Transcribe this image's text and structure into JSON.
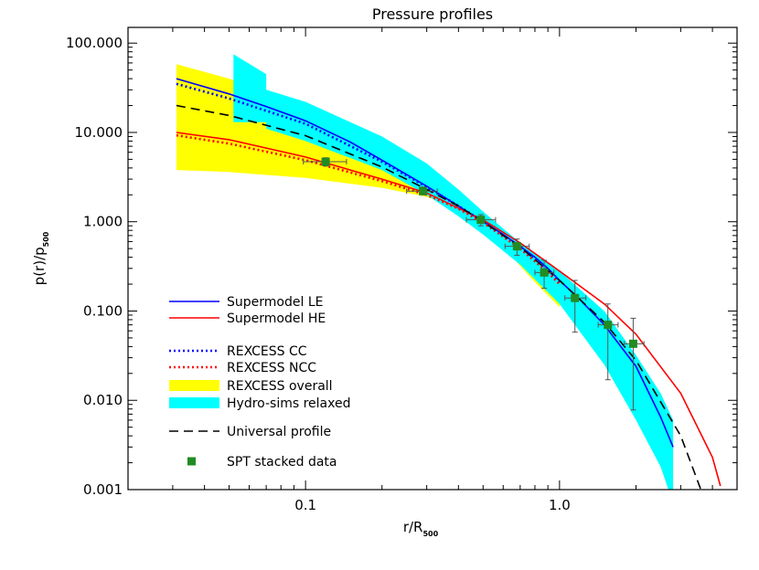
{
  "chart_data": {
    "type": "line",
    "title": "Pressure profiles",
    "xlabel": {
      "main": "r/R",
      "sub": "500"
    },
    "ylabel": {
      "main": "p(r)/p",
      "sub": "500"
    },
    "xscale": "log",
    "yscale": "log",
    "xlim": [
      0.02,
      5.0
    ],
    "ylim": [
      0.001,
      150
    ],
    "x_ticks": [
      {
        "v": 0.1,
        "label": "0.1"
      },
      {
        "v": 1.0,
        "label": "1.0"
      }
    ],
    "y_ticks": [
      {
        "v": 100,
        "label": "100.000"
      },
      {
        "v": 10,
        "label": "10.000"
      },
      {
        "v": 1,
        "label": "1.000"
      },
      {
        "v": 0.1,
        "label": "0.100"
      },
      {
        "v": 0.01,
        "label": "0.010"
      },
      {
        "v": 0.001,
        "label": "0.001"
      }
    ],
    "grid": false,
    "legend_position": "bottom-left",
    "bands": [
      {
        "name": "REXCESS overall",
        "color": "#ffff00",
        "x": [
          0.031,
          0.05,
          0.1,
          0.2,
          0.3,
          0.4,
          0.5,
          0.6,
          0.7,
          0.8,
          0.9,
          1.0
        ],
        "upper": [
          58,
          40,
          20,
          8.5,
          4.0,
          2.1,
          1.2,
          0.78,
          0.55,
          0.4,
          0.3,
          0.21
        ],
        "lower": [
          3.8,
          3.6,
          3.1,
          2.4,
          1.9,
          1.4,
          0.88,
          0.52,
          0.32,
          0.21,
          0.15,
          0.11
        ]
      },
      {
        "name": "Hydro-sims relaxed",
        "color": "#00ffff",
        "x": [
          0.052,
          0.07,
          0.07,
          0.1,
          0.2,
          0.3,
          0.4,
          0.5,
          0.7,
          1.0,
          1.5,
          2.0,
          2.5,
          2.8
        ],
        "upper": [
          75,
          45,
          30,
          22,
          9.0,
          4.5,
          2.3,
          1.3,
          0.58,
          0.28,
          0.1,
          0.032,
          0.012,
          0.006
        ],
        "lower": [
          13,
          13,
          11,
          8.0,
          3.8,
          2.0,
          1.15,
          0.72,
          0.33,
          0.12,
          0.025,
          0.006,
          0.0018,
          0.0007
        ]
      }
    ],
    "series": [
      {
        "name": "Supermodel LE",
        "color": "#0000ff",
        "dash": "solid",
        "x": [
          0.031,
          0.05,
          0.07,
          0.1,
          0.15,
          0.2,
          0.3,
          0.4,
          0.5,
          0.6,
          0.7,
          0.8,
          0.9,
          1.0,
          1.2,
          1.5,
          2.0,
          2.5,
          2.8
        ],
        "y": [
          40,
          27,
          19.5,
          13.5,
          7.8,
          4.9,
          2.5,
          1.5,
          1.0,
          0.72,
          0.53,
          0.4,
          0.3,
          0.22,
          0.135,
          0.07,
          0.024,
          0.0065,
          0.003
        ]
      },
      {
        "name": "Supermodel HE",
        "color": "#ff0000",
        "dash": "solid",
        "x": [
          0.031,
          0.05,
          0.1,
          0.15,
          0.2,
          0.3,
          0.5,
          0.7,
          1.0,
          1.5,
          2.0,
          3.0,
          4.0,
          4.3
        ],
        "y": [
          10,
          8.3,
          5.3,
          3.8,
          3.0,
          2.1,
          1.05,
          0.58,
          0.28,
          0.12,
          0.055,
          0.012,
          0.0023,
          0.0011
        ]
      },
      {
        "name": "REXCESS CC",
        "color": "#0000ff",
        "dash": "dotted",
        "x": [
          0.031,
          0.05,
          0.1,
          0.2,
          0.3,
          0.4,
          0.5,
          0.7,
          0.9,
          1.0
        ],
        "y": [
          35,
          24,
          12.5,
          4.7,
          2.45,
          1.5,
          1.0,
          0.52,
          0.29,
          0.21
        ]
      },
      {
        "name": "REXCESS NCC",
        "color": "#ff0000",
        "dash": "dotted",
        "x": [
          0.031,
          0.05,
          0.1,
          0.2,
          0.3,
          0.4,
          0.5,
          0.7,
          0.9,
          1.0
        ],
        "y": [
          9.3,
          7.5,
          4.9,
          2.85,
          2.0,
          1.4,
          0.98,
          0.5,
          0.27,
          0.2
        ]
      },
      {
        "name": "Universal profile",
        "color": "#000000",
        "dash": "dashed",
        "x": [
          0.031,
          0.05,
          0.1,
          0.2,
          0.3,
          0.4,
          0.5,
          0.7,
          1.0,
          1.5,
          2.0,
          3.0,
          3.6
        ],
        "y": [
          20,
          15.5,
          9.2,
          4.1,
          2.3,
          1.5,
          1.0,
          0.52,
          0.22,
          0.075,
          0.028,
          0.004,
          0.001
        ]
      }
    ],
    "points": {
      "name": "SPT stacked data",
      "color": "#228b22",
      "data": [
        {
          "x": 0.12,
          "y": 4.7,
          "xlo": 0.098,
          "xhi": 0.145,
          "ylo": 4.2,
          "yhi": 5.2
        },
        {
          "x": 0.29,
          "y": 2.2,
          "xlo": 0.25,
          "xhi": 0.33,
          "ylo": 2.0,
          "yhi": 2.45
        },
        {
          "x": 0.49,
          "y": 1.05,
          "xlo": 0.43,
          "xhi": 0.56,
          "ylo": 0.9,
          "yhi": 1.2
        },
        {
          "x": 0.68,
          "y": 0.53,
          "xlo": 0.61,
          "xhi": 0.76,
          "ylo": 0.42,
          "yhi": 0.64
        },
        {
          "x": 0.87,
          "y": 0.27,
          "xlo": 0.8,
          "xhi": 0.95,
          "ylo": 0.18,
          "yhi": 0.37
        },
        {
          "x": 1.15,
          "y": 0.14,
          "xlo": 1.05,
          "xhi": 1.27,
          "ylo": 0.058,
          "yhi": 0.22
        },
        {
          "x": 1.55,
          "y": 0.07,
          "xlo": 1.42,
          "xhi": 1.7,
          "ylo": 0.017,
          "yhi": 0.12
        },
        {
          "x": 1.95,
          "y": 0.043,
          "xlo": 1.8,
          "xhi": 2.15,
          "ylo": 0.0078,
          "yhi": 0.083
        }
      ]
    },
    "legend": [
      {
        "label": "Supermodel LE",
        "kind": "line",
        "color": "#0000ff",
        "dash": "solid"
      },
      {
        "label": "Supermodel HE",
        "kind": "line",
        "color": "#ff0000",
        "dash": "solid"
      },
      {
        "label": "REXCESS CC",
        "kind": "line",
        "color": "#0000ff",
        "dash": "dotted"
      },
      {
        "label": "REXCESS NCC",
        "kind": "line",
        "color": "#ff0000",
        "dash": "dotted"
      },
      {
        "label": "REXCESS overall",
        "kind": "band",
        "color": "#ffff00"
      },
      {
        "label": "Hydro-sims relaxed",
        "kind": "band",
        "color": "#00ffff"
      },
      {
        "label": "Universal profile",
        "kind": "line",
        "color": "#000000",
        "dash": "dashed"
      },
      {
        "label": "SPT stacked data",
        "kind": "marker",
        "color": "#228b22"
      }
    ]
  }
}
